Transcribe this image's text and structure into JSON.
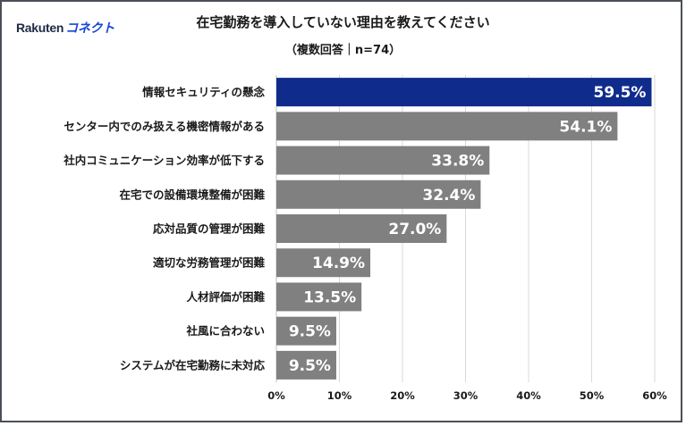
{
  "brand": {
    "name": "Rakuten",
    "product": "コネクト"
  },
  "chart_data": {
    "type": "bar",
    "orientation": "horizontal",
    "title": "在宅勤務を導入していない理由を教えてください",
    "subtitle": "（複数回答｜n=74）",
    "categories": [
      "情報セキュリティの懸念",
      "センター内でのみ扱える機密情報がある",
      "社内コミュニケーション効率が低下する",
      "在宅での設備環境整備が困難",
      "応対品質の管理が困難",
      "適切な労務管理が困難",
      "人材評価が困難",
      "社風に合わない",
      "システムが在宅勤務に未対応"
    ],
    "values": [
      59.5,
      54.1,
      33.8,
      32.4,
      27.0,
      14.9,
      13.5,
      9.5,
      9.5
    ],
    "value_labels": [
      "59.5%",
      "54.1%",
      "33.8%",
      "32.4%",
      "27.0%",
      "14.9%",
      "13.5%",
      "9.5%",
      "9.5%"
    ],
    "xlim": [
      0,
      60
    ],
    "x_ticks": [
      "0%",
      "10%",
      "20%",
      "30%",
      "40%",
      "50%",
      "60%"
    ],
    "grid": true,
    "colors": {
      "highlight": "#0f2c8c",
      "default": "#808080",
      "grid": "#d9d9d9"
    }
  }
}
